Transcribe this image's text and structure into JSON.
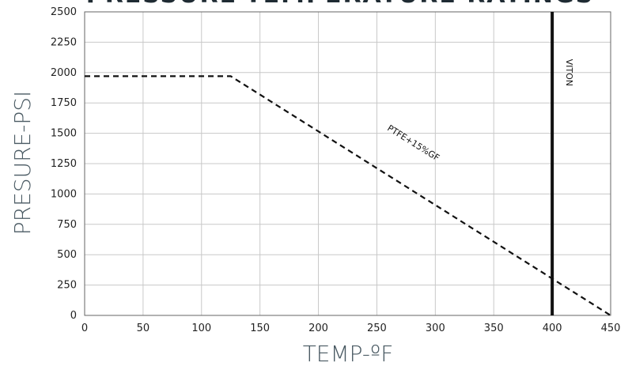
{
  "chart_data": {
    "type": "line",
    "title": "PRESSURE-TEMPERATURE RATINGS",
    "xlabel": "TEMP-ºF",
    "ylabel": "PRESURE-PSI",
    "xlim": [
      0,
      450
    ],
    "ylim": [
      0,
      2500
    ],
    "x_ticks": [
      0,
      50,
      100,
      150,
      200,
      250,
      300,
      350,
      400,
      450
    ],
    "y_ticks": [
      0,
      250,
      500,
      750,
      1000,
      1250,
      1500,
      1750,
      2000,
      2250,
      2500
    ],
    "grid": true,
    "series": [
      {
        "name": "PTFE+15%GF",
        "style": "dashed",
        "color": "#111111",
        "points": [
          [
            0,
            1970
          ],
          [
            125,
            1970
          ],
          [
            450,
            0
          ]
        ]
      },
      {
        "name": "VITON",
        "style": "solid",
        "color": "#111111",
        "points": [
          [
            400,
            0
          ],
          [
            400,
            2500
          ]
        ]
      }
    ],
    "annotations": [
      {
        "text": "PTFE+15%GF",
        "x": 280,
        "y": 1400,
        "rotation_deg": 32
      },
      {
        "text": "VITON",
        "x": 412,
        "y": 2000,
        "rotation_deg": 90
      }
    ]
  }
}
